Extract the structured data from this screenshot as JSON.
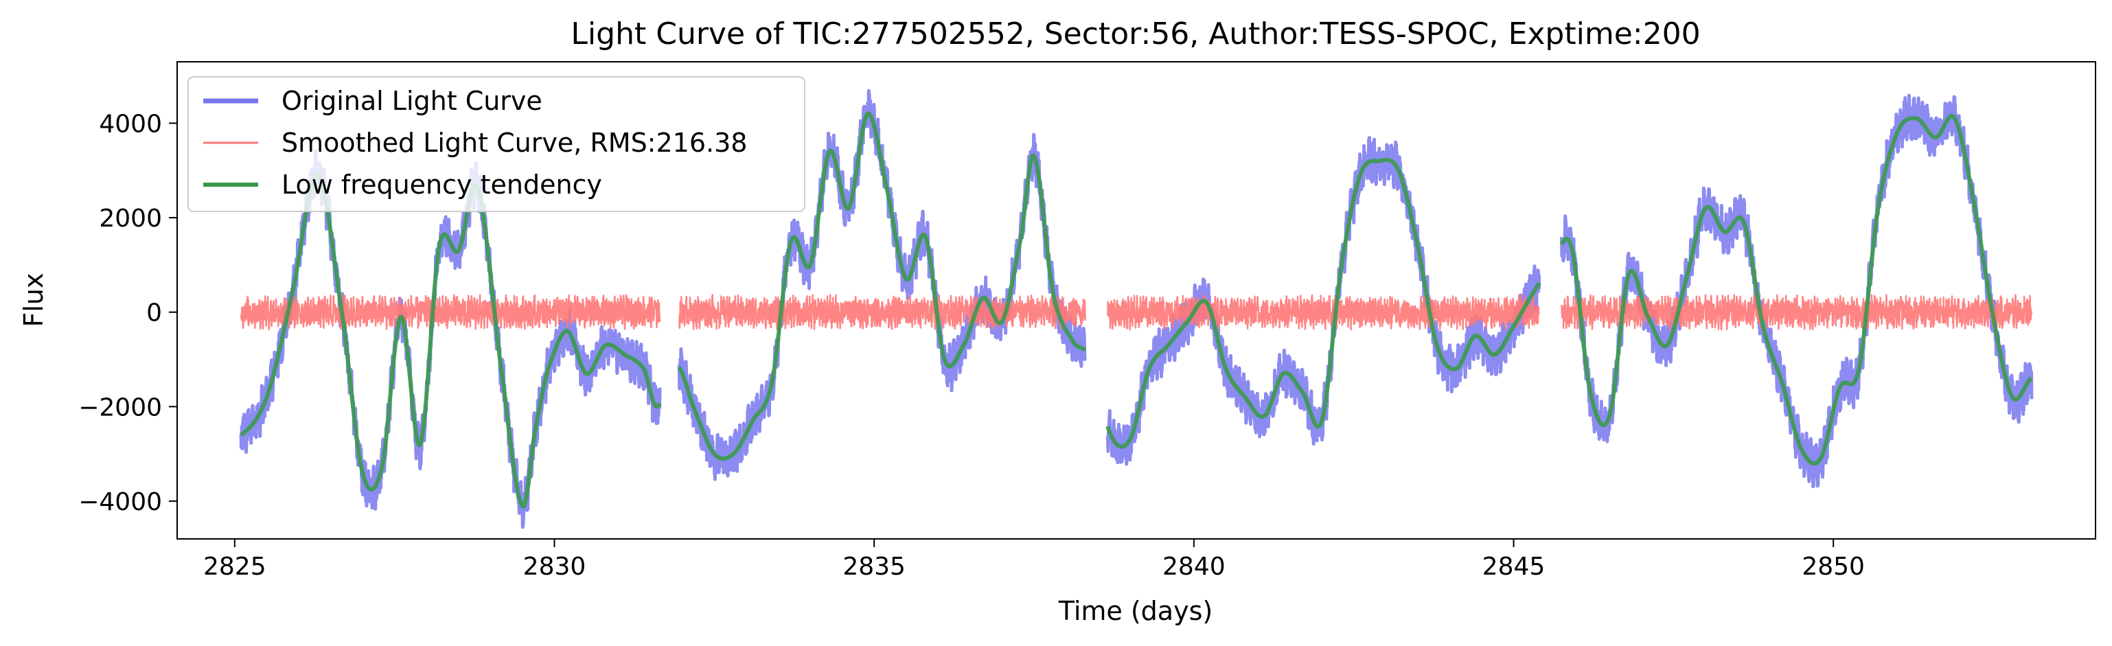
{
  "chart_data": {
    "type": "line",
    "title": "Light Curve of TIC:277502552, Sector:56, Author:TESS-SPOC, Exptime:200",
    "xlabel": "Time (days)",
    "ylabel": "Flux",
    "xlim": [
      2824.1,
      2854.1
    ],
    "ylim": [
      -4800,
      5300
    ],
    "xticks": [
      2825,
      2830,
      2835,
      2840,
      2845,
      2850
    ],
    "yticks": [
      -4000,
      -2000,
      0,
      2000,
      4000
    ],
    "xtick_labels": [
      "2825",
      "2830",
      "2835",
      "2840",
      "2845",
      "2850"
    ],
    "ytick_labels": [
      "−4000",
      "−2000",
      "0",
      "2000",
      "4000"
    ],
    "grid": false,
    "legend_position": "top-left",
    "gaps": [
      [
        2831.65,
        2831.95
      ],
      [
        2838.3,
        2838.65
      ],
      [
        2845.4,
        2845.75
      ]
    ],
    "series": [
      {
        "name": "Original Light Curve",
        "color": "#7777ee",
        "style": "thick line",
        "x": [
          2825.1,
          2825.5,
          2825.9,
          2826.3,
          2826.7,
          2827.0,
          2827.3,
          2827.6,
          2827.9,
          2828.2,
          2828.5,
          2828.8,
          2829.2,
          2829.5,
          2829.7,
          2829.9,
          2830.2,
          2830.5,
          2830.8,
          2831.1,
          2831.4,
          2831.6,
          2831.9,
          2832.2,
          2832.5,
          2832.8,
          2833.1,
          2833.4,
          2833.7,
          2834.0,
          2834.3,
          2834.6,
          2834.9,
          2835.2,
          2835.5,
          2835.8,
          2836.1,
          2836.4,
          2836.7,
          2837.0,
          2837.3,
          2837.5,
          2837.8,
          2838.1,
          2838.4,
          2838.7,
          2839.0,
          2839.3,
          2839.6,
          2839.9,
          2840.2,
          2840.5,
          2840.8,
          2841.1,
          2841.4,
          2841.7,
          2842.0,
          2842.3,
          2842.6,
          2842.9,
          2843.2,
          2843.5,
          2843.8,
          2844.1,
          2844.4,
          2844.7,
          2845.0,
          2845.3,
          2845.6,
          2845.9,
          2846.2,
          2846.5,
          2846.8,
          2847.1,
          2847.4,
          2847.7,
          2848.0,
          2848.3,
          2848.6,
          2848.9,
          2849.2,
          2849.5,
          2849.8,
          2850.1,
          2850.4,
          2850.7,
          2851.0,
          2851.3,
          2851.6,
          2851.9,
          2852.2,
          2852.5,
          2852.8,
          2853.1
        ],
        "values": [
          -2600,
          -1800,
          400,
          2900,
          -200,
          -3400,
          -3300,
          -100,
          -2800,
          1400,
          1300,
          2600,
          -1500,
          -4100,
          -2500,
          -1200,
          -400,
          -1300,
          -700,
          -900,
          -1200,
          -2000,
          -1100,
          -2100,
          -3000,
          -3000,
          -2300,
          -1500,
          1500,
          1000,
          3400,
          2200,
          4200,
          2600,
          700,
          1600,
          -1000,
          -700,
          300,
          -200,
          1600,
          3300,
          400,
          -600,
          -1000,
          -2600,
          -2700,
          -1200,
          -700,
          -200,
          200,
          -1200,
          -1800,
          -2200,
          -1300,
          -1700,
          -2300,
          900,
          2900,
          3200,
          3000,
          1400,
          -700,
          -1200,
          -500,
          -900,
          -300,
          400,
          1000,
          1400,
          -1700,
          -2200,
          800,
          -100,
          -700,
          700,
          2200,
          1700,
          1900,
          -300,
          -1500,
          -2900,
          -3100,
          -1600,
          -1200,
          2200,
          3800,
          4100,
          3700,
          4100,
          2300,
          -100,
          -1800,
          -1400
        ]
      },
      {
        "name": "Smoothed Light Curve, RMS:216.38",
        "color": "#ff7777",
        "style": "thin line",
        "x": [
          2825.1,
          2853.1
        ],
        "values": [
          0,
          0
        ],
        "rms": 216.38
      },
      {
        "name": "Low frequency tendency",
        "color": "#3a9a4a",
        "style": "medium line",
        "x": [
          2825.1,
          2825.5,
          2825.9,
          2826.3,
          2826.7,
          2827.0,
          2827.3,
          2827.6,
          2827.9,
          2828.2,
          2828.5,
          2828.8,
          2829.2,
          2829.5,
          2829.7,
          2829.9,
          2830.2,
          2830.5,
          2830.8,
          2831.1,
          2831.4,
          2831.6,
          2831.9,
          2832.2,
          2832.5,
          2832.8,
          2833.1,
          2833.4,
          2833.7,
          2834.0,
          2834.3,
          2834.6,
          2834.9,
          2835.2,
          2835.5,
          2835.8,
          2836.1,
          2836.4,
          2836.7,
          2837.0,
          2837.3,
          2837.5,
          2837.8,
          2838.1,
          2838.4,
          2838.7,
          2839.0,
          2839.3,
          2839.6,
          2839.9,
          2840.2,
          2840.5,
          2840.8,
          2841.1,
          2841.4,
          2841.7,
          2842.0,
          2842.3,
          2842.6,
          2842.9,
          2843.2,
          2843.5,
          2843.8,
          2844.1,
          2844.4,
          2844.7,
          2845.0,
          2845.3,
          2845.6,
          2845.9,
          2846.2,
          2846.5,
          2846.8,
          2847.1,
          2847.4,
          2847.7,
          2848.0,
          2848.3,
          2848.6,
          2848.9,
          2849.2,
          2849.5,
          2849.8,
          2850.1,
          2850.4,
          2850.7,
          2851.0,
          2851.3,
          2851.6,
          2851.9,
          2852.2,
          2852.5,
          2852.8,
          2853.1
        ],
        "values": [
          -2600,
          -1800,
          400,
          2900,
          -200,
          -3400,
          -3300,
          -100,
          -2800,
          1400,
          1300,
          2600,
          -1500,
          -4100,
          -2500,
          -1200,
          -400,
          -1300,
          -700,
          -900,
          -1200,
          -2000,
          -1100,
          -2100,
          -3000,
          -3000,
          -2300,
          -1500,
          1500,
          1000,
          3400,
          2200,
          4200,
          2600,
          700,
          1600,
          -1000,
          -700,
          300,
          -200,
          1600,
          3300,
          400,
          -600,
          -1000,
          -2600,
          -2700,
          -1200,
          -700,
          -200,
          200,
          -1200,
          -1800,
          -2200,
          -1300,
          -1700,
          -2300,
          900,
          2900,
          3200,
          3000,
          1400,
          -700,
          -1200,
          -500,
          -900,
          -300,
          400,
          1000,
          1400,
          -1700,
          -2200,
          800,
          -100,
          -700,
          700,
          2200,
          1700,
          1900,
          -300,
          -1500,
          -2900,
          -3100,
          -1600,
          -1200,
          2200,
          3800,
          4100,
          3700,
          4100,
          2300,
          -100,
          -1800,
          -1400
        ]
      }
    ]
  }
}
